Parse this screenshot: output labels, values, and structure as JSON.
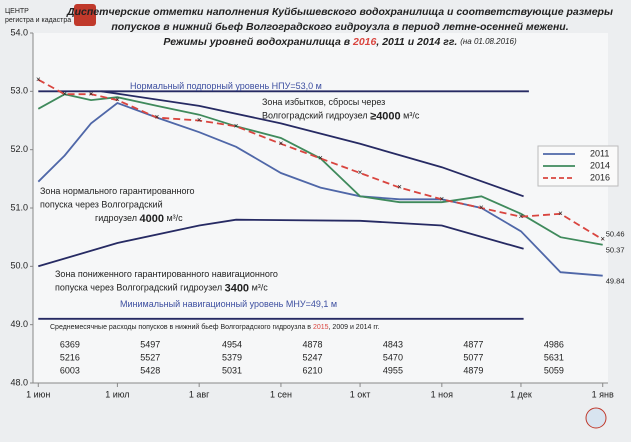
{
  "header": {
    "logo_lines": [
      "ЦЕНТР",
      "регистра и кадастра"
    ]
  },
  "chart_data": {
    "type": "line",
    "title_lines": [
      "Диспетчерские отметки наполнения Куйбышевского водохранилища и соответствующие размеры",
      "попусков  в нижний бьеф Волгоградского гидроузла в период летне-осенней межени."
    ],
    "subtitle_parts": [
      "Режимы уровней водохранилища в ",
      "2016",
      ", 2011 и 2014 гг. ",
      "(на 01.08.2016)"
    ],
    "x": [
      0,
      10,
      20,
      30,
      45,
      61,
      75,
      92,
      107,
      122,
      137,
      153,
      168,
      183,
      198,
      214
    ],
    "xlim": [
      -2,
      216
    ],
    "xticks": [
      {
        "value": 0,
        "label": "1 июн"
      },
      {
        "value": 30,
        "label": "1 июл"
      },
      {
        "value": 61,
        "label": "1 авг"
      },
      {
        "value": 92,
        "label": "1 сен"
      },
      {
        "value": 122,
        "label": "1 окт"
      },
      {
        "value": 153,
        "label": "1 ноя"
      },
      {
        "value": 183,
        "label": "1 дек"
      },
      {
        "value": 214,
        "label": "1 янв"
      }
    ],
    "ylim": [
      48,
      54
    ],
    "yticks": [
      {
        "value": 48,
        "label": "48.0"
      },
      {
        "value": 49,
        "label": "49.0"
      },
      {
        "value": 50,
        "label": "50.0"
      },
      {
        "value": 51,
        "label": "51.0"
      },
      {
        "value": 52,
        "label": "52.0"
      },
      {
        "value": 53,
        "label": "53.0"
      },
      {
        "value": 54,
        "label": "54.0"
      }
    ],
    "series": [
      {
        "name": "2011",
        "color": "#4f67a8",
        "dashed": false,
        "values": [
          51.45,
          51.9,
          52.45,
          52.8,
          52.55,
          52.3,
          52.05,
          51.6,
          51.35,
          51.2,
          51.15,
          51.15,
          51.0,
          50.6,
          49.9,
          49.84
        ],
        "value_labels": [
          null,
          null,
          null,
          null,
          null,
          null,
          null,
          null,
          null,
          null,
          null,
          null,
          null,
          null,
          null,
          "49.84"
        ]
      },
      {
        "name": "2014",
        "color": "#3f8a5c",
        "dashed": false,
        "values": [
          52.7,
          52.95,
          52.85,
          52.9,
          52.75,
          52.6,
          52.4,
          52.2,
          51.85,
          51.2,
          51.1,
          51.1,
          51.2,
          50.9,
          50.5,
          50.37
        ],
        "value_labels": [
          null,
          null,
          null,
          null,
          null,
          null,
          null,
          null,
          null,
          null,
          null,
          null,
          null,
          null,
          null,
          "50.37"
        ]
      },
      {
        "name": "2016",
        "color": "#d9453f",
        "dashed": true,
        "values": [
          53.2,
          52.95,
          52.95,
          52.85,
          52.55,
          52.5,
          52.4,
          52.1,
          51.85,
          51.6,
          51.35,
          51.15,
          51.0,
          50.85,
          50.9,
          50.46
        ],
        "value_labels": [
          null,
          null,
          null,
          null,
          null,
          null,
          null,
          null,
          null,
          null,
          null,
          null,
          null,
          null,
          null,
          "50.46"
        ]
      }
    ],
    "reference_lines": [
      {
        "color": "#262a63",
        "label_color": "#3d4fa0",
        "label_lines": [
          [
            "Нормальный подпорный уровень НПУ=53,0 м"
          ]
        ],
        "x": [
          0,
          186
        ],
        "values": [
          53.0,
          53.0
        ]
      },
      {
        "color": "#262a63",
        "label_color": "#222222",
        "label_lines": [
          [
            "Зона избытков, сбросы через"
          ],
          [
            "Волгоградский гидроузел ",
            "≥4000",
            " м³/с"
          ]
        ],
        "x": [
          24,
          61,
          92,
          122,
          153,
          184
        ],
        "values": [
          53.0,
          52.75,
          52.45,
          52.1,
          51.7,
          51.2
        ]
      },
      {
        "color": "#262a63",
        "label_color": "#222222",
        "label_lines": [
          [
            "Зона нормального гарантированного"
          ],
          [
            "попуска через Волгоградский"
          ],
          [
            "гидроузел ",
            "4000",
            " м³/с"
          ]
        ],
        "x": [
          0,
          30,
          61,
          75,
          122,
          153,
          184
        ],
        "values": [
          50.0,
          50.4,
          50.7,
          50.8,
          50.78,
          50.7,
          50.3
        ]
      },
      {
        "color": "#262a63",
        "label_color": "#222222",
        "label_lines": [
          [
            "Зона пониженного гарантированного навигационного"
          ],
          [
            "попуска через Волгоградский гидроузел ",
            "3400",
            " м³/с"
          ]
        ],
        "x": [],
        "values": []
      },
      {
        "color": "#262a63",
        "label_color": "#3d4fa0",
        "label_lines": [
          [
            "Минимальный навигационный уровень МНУ=49,1 м"
          ]
        ],
        "x": [
          0,
          184
        ],
        "values": [
          49.1,
          49.1
        ]
      }
    ],
    "flow_table": {
      "title_parts": [
        "Среднемесячные расходы попусков в нижний бьеф Волгоградского гидроузла в ",
        "2015",
        ", 2009 и 2014 гг."
      ],
      "rows": [
        {
          "color": "#d9453f",
          "values": [
            6369,
            5497,
            4954,
            4878,
            4843,
            4877,
            4986
          ]
        },
        {
          "color": "#3d4fa0",
          "values": [
            5216,
            5527,
            5379,
            5247,
            5470,
            5077,
            5631
          ]
        },
        {
          "color": "#3d4fa0",
          "values": [
            6003,
            5428,
            5031,
            6210,
            4955,
            4879,
            5059
          ]
        }
      ]
    }
  }
}
